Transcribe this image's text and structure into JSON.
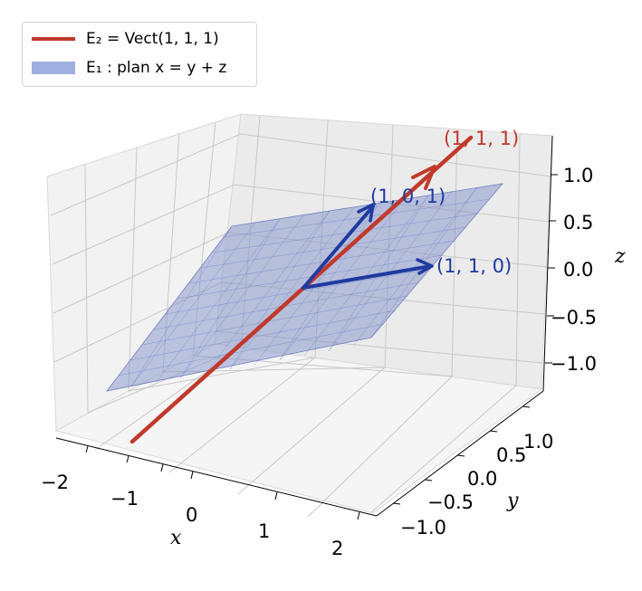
{
  "chart_data": {
    "type": "3d-line-plane",
    "legend": {
      "position": "top-left",
      "entries": [
        {
          "label": "E₂ = Vect(1, 1, 1)",
          "color": "#c0392b",
          "kind": "line"
        },
        {
          "label": "E₁ : plan x = y + z",
          "color": "#9fb0e0",
          "kind": "patch"
        }
      ]
    },
    "line": {
      "color": "#c0392b",
      "from": [
        -2,
        -2,
        -2
      ],
      "to": [
        1.2,
        1.2,
        1.2
      ],
      "arrow_tip": [
        1,
        1,
        1
      ],
      "label": "(1, 1, 1)"
    },
    "plane": {
      "equation": "x = y + z",
      "color": "#8191c9",
      "corners": [
        [
          -2,
          -1,
          -1
        ],
        [
          0,
          1,
          -1
        ],
        [
          2,
          1,
          1
        ],
        [
          0,
          -1,
          1
        ]
      ]
    },
    "vectors": [
      {
        "from": [
          0,
          0,
          0
        ],
        "to": [
          1,
          0,
          1
        ],
        "label": "(1, 0, 1)",
        "color": "#1f3aa0"
      },
      {
        "from": [
          0,
          0,
          0
        ],
        "to": [
          1,
          1,
          0
        ],
        "label": "(1, 1, 0)",
        "color": "#1f3aa0"
      }
    ],
    "axes": {
      "x": {
        "label": "x",
        "ticks": [
          "−2",
          "−1",
          "0",
          "1",
          "2"
        ]
      },
      "y": {
        "label": "y",
        "ticks": [
          "−1.0",
          "−0.5",
          "0.0",
          "0.5",
          "1.0"
        ]
      },
      "z": {
        "label": "z",
        "ticks": [
          "−1.0",
          "−0.5",
          "0.0",
          "0.5",
          "1.0"
        ]
      }
    },
    "grid": true
  }
}
